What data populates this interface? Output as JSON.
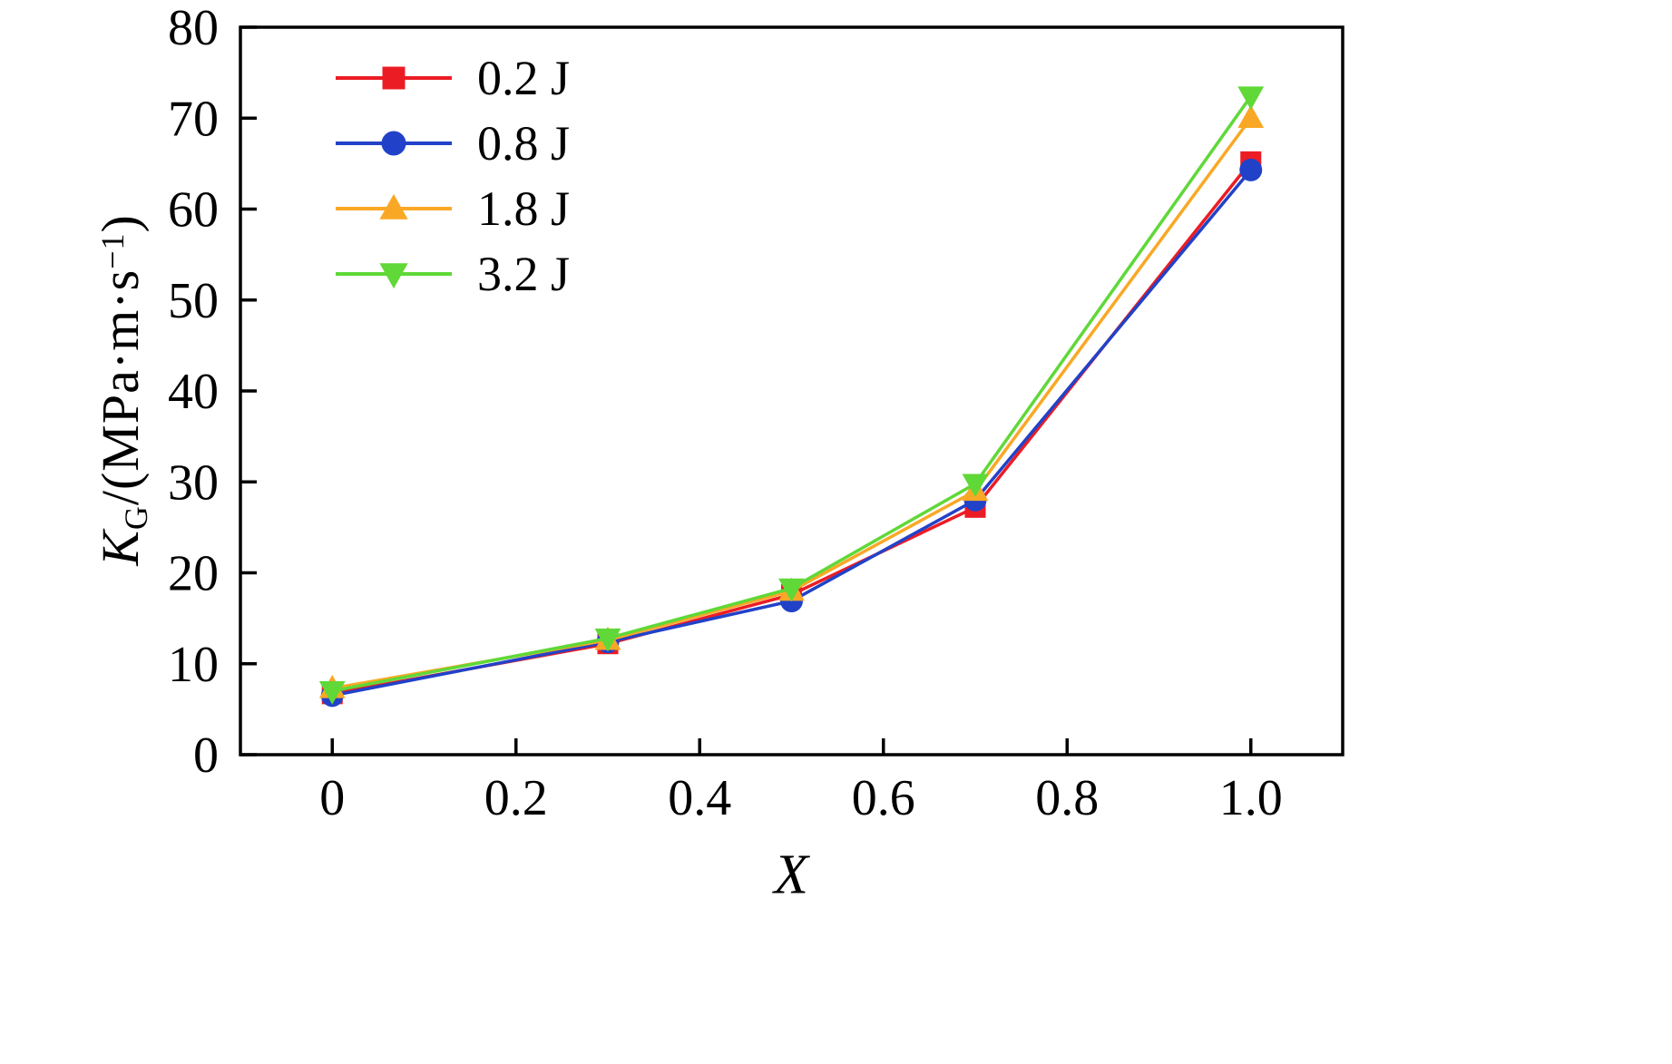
{
  "chart_data": {
    "type": "line",
    "title": "",
    "xlabel": "X",
    "ylabel": "K_G/(MPa·m·s^−1)",
    "xlim": [
      -0.1,
      1.1
    ],
    "ylim": [
      0,
      80
    ],
    "grid": false,
    "legend_position": "top-left",
    "x_ticks": [
      0,
      0.2,
      0.4,
      0.6,
      0.8,
      1.0
    ],
    "x_tick_labels": [
      "0",
      "0.2",
      "0.4",
      "0.6",
      "0.8",
      "1.0"
    ],
    "y_ticks": [
      0,
      10,
      20,
      30,
      40,
      50,
      60,
      70,
      80
    ],
    "y_tick_labels": [
      "0",
      "10",
      "20",
      "30",
      "40",
      "50",
      "60",
      "70",
      "80"
    ],
    "x": [
      0,
      0.3,
      0.5,
      0.7,
      1.0
    ],
    "series": [
      {
        "name": "0.2 J",
        "color": "#ec1c24",
        "marker": "square",
        "values": [
          6.7,
          12.2,
          17.6,
          27.2,
          65.2
        ]
      },
      {
        "name": "0.8 J",
        "color": "#2142c8",
        "marker": "circle",
        "values": [
          6.5,
          12.4,
          16.9,
          28.0,
          64.3
        ]
      },
      {
        "name": "1.8 J",
        "color": "#f9a825",
        "marker": "triangle-up",
        "values": [
          7.3,
          12.6,
          18.0,
          29.0,
          70.0
        ]
      },
      {
        "name": "3.2 J",
        "color": "#5fd838",
        "marker": "triangle-down",
        "values": [
          7.0,
          12.8,
          18.3,
          29.8,
          72.4
        ]
      }
    ]
  },
  "ylabel_parts": {
    "variable": "K",
    "subscript": "G",
    "middle": "/(MPa·m·s",
    "superscript": "−1",
    "end": ")"
  }
}
